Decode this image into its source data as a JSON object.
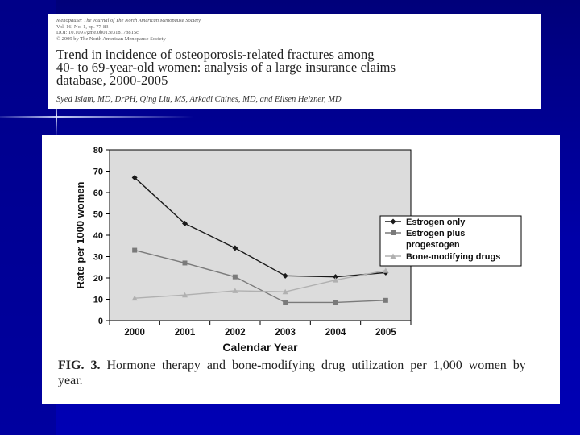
{
  "header": {
    "journal_lines": [
      "Menopause: The Journal of The North American Menopause Society",
      "Vol. 16, No. 1, pp. 77-83",
      "DOI: 10.1097/gme.0b013e31817b815c",
      "© 2009 by The North American Menopause Society"
    ],
    "title_lines": [
      "Trend in incidence of osteoporosis-related fractures among",
      "40- to 69-year-old women: analysis of a large insurance claims",
      "database, 2000-2005"
    ],
    "authors": "Syed Islam, MD, DrPH, Qing Liu, MS, Arkadi Chines, MD, and Eilsen Helzner, MD"
  },
  "caption": {
    "label": "FIG. 3.",
    "text": "Hormone therapy and bone-modifying drug utilization per 1,000 women by year."
  },
  "chart_data": {
    "type": "line",
    "title": "",
    "xlabel": "Calendar Year",
    "ylabel": "Rate per 1000 women",
    "categories": [
      "2000",
      "2001",
      "2002",
      "2003",
      "2004",
      "2005"
    ],
    "ylim": [
      0,
      80
    ],
    "yticks": [
      0,
      10,
      20,
      30,
      40,
      50,
      60,
      70,
      80
    ],
    "plot_background": "#dcdcdc",
    "grid": false,
    "legend_position": "right",
    "series": [
      {
        "name": "Estrogen only",
        "values": [
          67,
          45.5,
          34,
          21,
          20.5,
          22.5
        ],
        "color": "#1a1a1a",
        "marker": "diamond"
      },
      {
        "name": "Estrogen plus progestogen",
        "values": [
          33,
          27,
          20.5,
          8.5,
          8.5,
          9.5
        ],
        "color": "#7a7a7a",
        "marker": "square"
      },
      {
        "name": "Bone-modifying drugs",
        "values": [
          10.5,
          12,
          14,
          13.5,
          19,
          23.5
        ],
        "color": "#b0b0b0",
        "marker": "triangle"
      }
    ],
    "legend_lines": [
      [
        "Estrogen only"
      ],
      [
        "Estrogen plus",
        "progestogen"
      ],
      [
        "Bone-modifying drugs"
      ]
    ]
  }
}
